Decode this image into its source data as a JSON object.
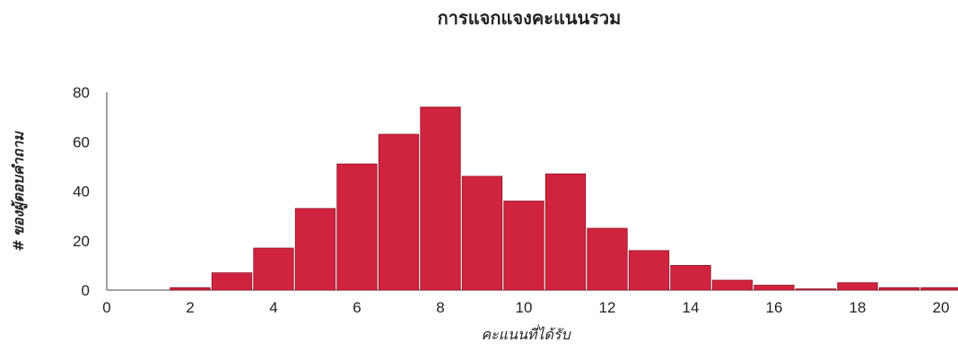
{
  "chart_data": {
    "type": "bar",
    "title": "การแจกแจงคะแนนรวม",
    "xlabel": "คะแนนที่ได้รับ",
    "ylabel": "# ของผู้ตอบคำถาม",
    "xlim": [
      0,
      20
    ],
    "ylim": [
      0,
      80
    ],
    "xticks": [
      0,
      2,
      4,
      6,
      8,
      10,
      12,
      14,
      16,
      18,
      20
    ],
    "yticks": [
      0,
      20,
      40,
      60,
      80
    ],
    "bin_width": 1,
    "grid": false,
    "bar_color": "#d0233f",
    "bins": [
      {
        "x": 1,
        "value": 0
      },
      {
        "x": 2,
        "value": 1
      },
      {
        "x": 3,
        "value": 7
      },
      {
        "x": 4,
        "value": 17
      },
      {
        "x": 5,
        "value": 33
      },
      {
        "x": 6,
        "value": 51
      },
      {
        "x": 7,
        "value": 63
      },
      {
        "x": 8,
        "value": 74
      },
      {
        "x": 9,
        "value": 46
      },
      {
        "x": 10,
        "value": 36
      },
      {
        "x": 11,
        "value": 47
      },
      {
        "x": 12,
        "value": 25
      },
      {
        "x": 13,
        "value": 16
      },
      {
        "x": 14,
        "value": 10
      },
      {
        "x": 15,
        "value": 4
      },
      {
        "x": 16,
        "value": 2
      },
      {
        "x": 17,
        "value": 0.5
      },
      {
        "x": 18,
        "value": 3
      },
      {
        "x": 19,
        "value": 1
      },
      {
        "x": 20,
        "value": 1
      }
    ]
  }
}
